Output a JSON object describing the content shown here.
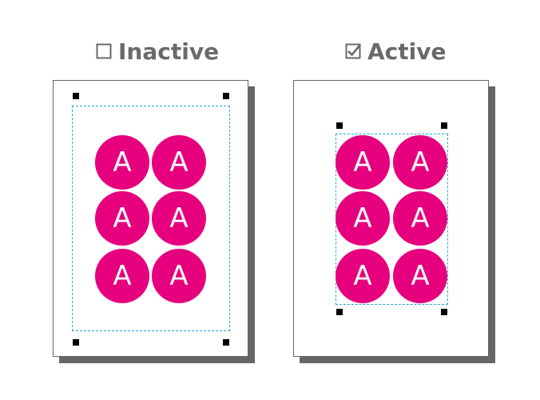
{
  "inactive": {
    "heading": "Inactive",
    "checkbox_icon": "empty-checkbox-icon",
    "circle_letters": [
      "A",
      "A",
      "A",
      "A",
      "A",
      "A"
    ]
  },
  "active": {
    "heading": "Active",
    "checkbox_icon": "checked-checkbox-icon",
    "circle_letters": [
      "A",
      "A",
      "A",
      "A",
      "A",
      "A"
    ]
  },
  "colors": {
    "circle": "#e6007e",
    "dashed_outline": "#29a7d6",
    "heading_text": "#6a6a6a",
    "page_shadow": "#666666"
  }
}
